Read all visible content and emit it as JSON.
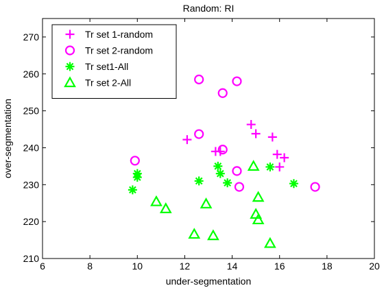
{
  "chart_data": {
    "type": "scatter",
    "title": "Random: RI",
    "xlabel": "under-segmentation",
    "ylabel": "over-segmentation",
    "xlim": [
      6,
      20
    ],
    "ylim": [
      210,
      275
    ],
    "xticks": [
      6,
      8,
      10,
      12,
      14,
      16,
      18,
      20
    ],
    "yticks": [
      210,
      220,
      230,
      240,
      250,
      260,
      270
    ],
    "xtick_labels": [
      "6",
      "8",
      "10",
      "12",
      "14",
      "16",
      "18",
      "20"
    ],
    "ytick_labels": [
      "210",
      "220",
      "230",
      "240",
      "250",
      "260",
      "270"
    ],
    "grid": false,
    "legend_position": "top-left",
    "series": [
      {
        "name": "Tr set 1-random",
        "marker": "plus",
        "color": "#ff00ff",
        "points": [
          [
            12.1,
            242.2
          ],
          [
            13.3,
            239.0
          ],
          [
            13.5,
            239.0
          ],
          [
            14.8,
            246.3
          ],
          [
            15.0,
            243.8
          ],
          [
            15.7,
            242.9
          ],
          [
            15.9,
            238.2
          ],
          [
            16.0,
            234.8
          ],
          [
            16.2,
            237.3
          ]
        ]
      },
      {
        "name": "Tr set 2-random",
        "marker": "circle",
        "color": "#ff00ff",
        "points": [
          [
            9.9,
            236.5
          ],
          [
            12.6,
            258.5
          ],
          [
            12.6,
            243.7
          ],
          [
            13.6,
            254.8
          ],
          [
            13.6,
            239.5
          ],
          [
            14.2,
            258.0
          ],
          [
            14.2,
            233.7
          ],
          [
            14.3,
            229.4
          ],
          [
            17.5,
            229.4
          ]
        ]
      },
      {
        "name": "Tr set1-All",
        "marker": "asterisk",
        "color": "#00ff00",
        "points": [
          [
            9.8,
            228.6
          ],
          [
            10.0,
            233.0
          ],
          [
            10.0,
            232.0
          ],
          [
            12.6,
            231.0
          ],
          [
            13.4,
            235.0
          ],
          [
            13.5,
            233.0
          ],
          [
            13.8,
            230.5
          ],
          [
            15.6,
            234.8
          ],
          [
            16.6,
            230.3
          ]
        ]
      },
      {
        "name": "Tr set 2-All",
        "marker": "triangle",
        "color": "#00ff00",
        "points": [
          [
            10.8,
            225.4
          ],
          [
            11.2,
            223.5
          ],
          [
            12.4,
            216.6
          ],
          [
            12.9,
            224.8
          ],
          [
            13.2,
            216.2
          ],
          [
            14.9,
            235.0
          ],
          [
            15.0,
            222.0
          ],
          [
            15.1,
            226.6
          ],
          [
            15.1,
            220.5
          ],
          [
            15.6,
            214.1
          ]
        ]
      }
    ]
  }
}
